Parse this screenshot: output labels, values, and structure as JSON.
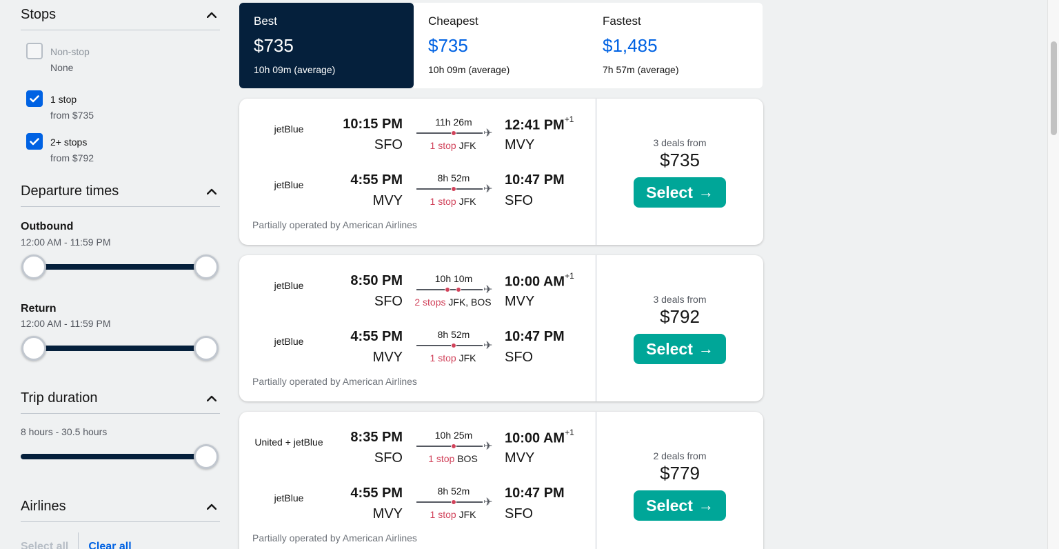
{
  "filters": {
    "stops": {
      "title": "Stops",
      "options": [
        {
          "label": "Non-stop",
          "sub": "None",
          "checked": false,
          "disabled": true
        },
        {
          "label": "1 stop",
          "sub": "from $735",
          "checked": true,
          "disabled": false
        },
        {
          "label": "2+ stops",
          "sub": "from $792",
          "checked": true,
          "disabled": false
        }
      ]
    },
    "departure": {
      "title": "Departure times",
      "outbound_label": "Outbound",
      "outbound_range": "12:00 AM - 11:59 PM",
      "return_label": "Return",
      "return_range": "12:00 AM - 11:59 PM"
    },
    "duration": {
      "title": "Trip duration",
      "range": "8 hours - 30.5 hours"
    },
    "airlines": {
      "title": "Airlines",
      "select_all": "Select all",
      "clear_all": "Clear all"
    }
  },
  "sort_tabs": [
    {
      "label": "Best",
      "price": "$735",
      "duration": "10h 09m (average)",
      "active": true
    },
    {
      "label": "Cheapest",
      "price": "$735",
      "duration": "10h 09m (average)",
      "active": false
    },
    {
      "label": "Fastest",
      "price": "$1,485",
      "duration": "7h 57m (average)",
      "active": false
    }
  ],
  "results": [
    {
      "legs": [
        {
          "airline": "jetBlue",
          "dep_time": "10:15 PM",
          "dep_code": "SFO",
          "duration": "11h 26m",
          "stops_count": "1 stop",
          "stops_via": "JFK",
          "arr_time": "12:41 PM",
          "arr_offset": "+1",
          "arr_code": "MVY"
        },
        {
          "airline": "jetBlue",
          "dep_time": "4:55 PM",
          "dep_code": "MVY",
          "duration": "8h 52m",
          "stops_count": "1 stop",
          "stops_via": "JFK",
          "arr_time": "10:47 PM",
          "arr_offset": "",
          "arr_code": "SFO"
        }
      ],
      "operated": "Partially operated by American Airlines",
      "deals": "3 deals from",
      "price": "$735",
      "select_label": "Select"
    },
    {
      "legs": [
        {
          "airline": "jetBlue",
          "dep_time": "8:50 PM",
          "dep_code": "SFO",
          "duration": "10h 10m",
          "stops_count": "2 stops",
          "stops_via": "JFK, BOS",
          "arr_time": "10:00 AM",
          "arr_offset": "+1",
          "arr_code": "MVY"
        },
        {
          "airline": "jetBlue",
          "dep_time": "4:55 PM",
          "dep_code": "MVY",
          "duration": "8h 52m",
          "stops_count": "1 stop",
          "stops_via": "JFK",
          "arr_time": "10:47 PM",
          "arr_offset": "",
          "arr_code": "SFO"
        }
      ],
      "operated": "Partially operated by American Airlines",
      "deals": "3 deals from",
      "price": "$792",
      "select_label": "Select"
    },
    {
      "legs": [
        {
          "airline": "United + jetBlue",
          "dep_time": "8:35 PM",
          "dep_code": "SFO",
          "duration": "10h 25m",
          "stops_count": "1 stop",
          "stops_via": "BOS",
          "arr_time": "10:00 AM",
          "arr_offset": "+1",
          "arr_code": "MVY"
        },
        {
          "airline": "jetBlue",
          "dep_time": "4:55 PM",
          "dep_code": "MVY",
          "duration": "8h 52m",
          "stops_count": "1 stop",
          "stops_via": "JFK",
          "arr_time": "10:47 PM",
          "arr_offset": "",
          "arr_code": "SFO"
        }
      ],
      "operated": "Partially operated by American Airlines",
      "deals": "2 deals from",
      "price": "$779",
      "select_label": "Select"
    }
  ],
  "icons": {
    "chevron": "chevron-up-icon",
    "check": "checkmark-icon",
    "plane": "airplane-icon",
    "arrow": "arrow-right-icon"
  },
  "colors": {
    "navy": "#05203c",
    "blue": "#0062e3",
    "teal": "#00a698",
    "stop_red": "#d1435b"
  }
}
